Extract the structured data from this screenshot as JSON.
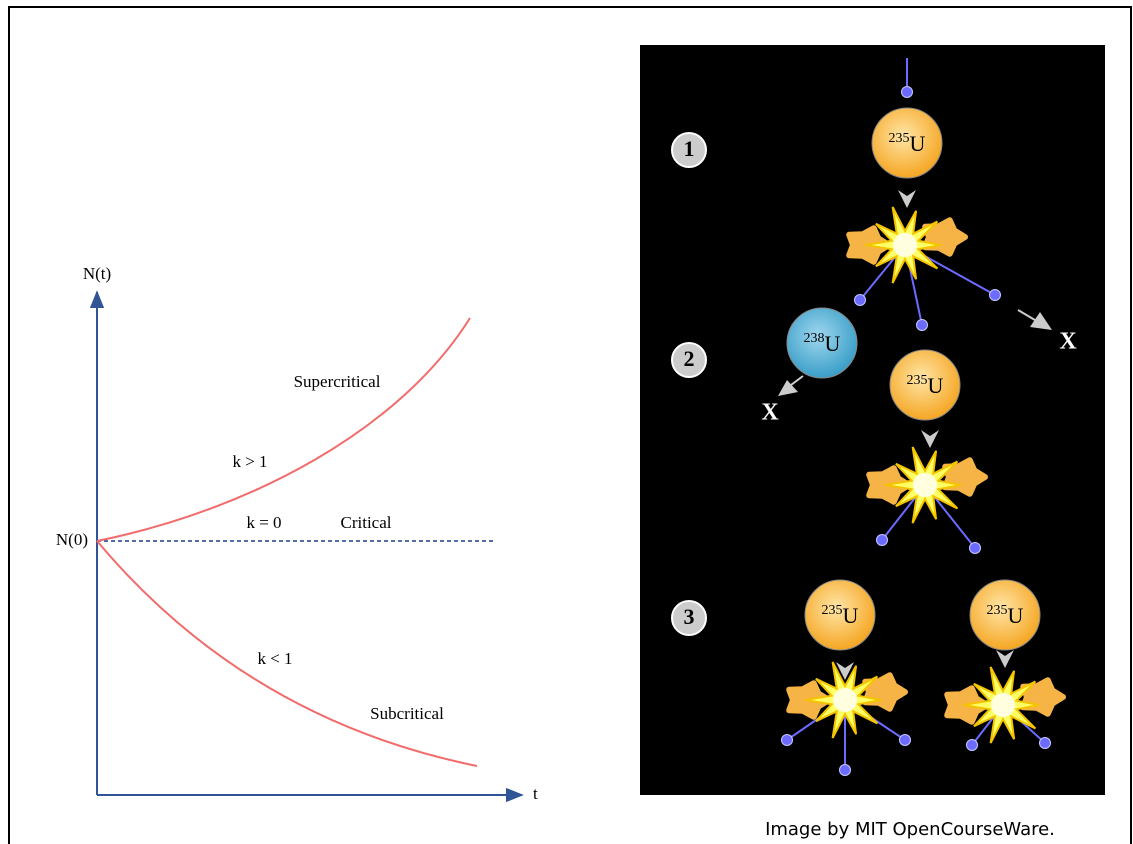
{
  "graph": {
    "y_axis_label": "N(t)",
    "x_axis_label": "t",
    "origin_label": "N(0)",
    "curves": [
      {
        "regime": "Supercritical",
        "condition": "k > 1"
      },
      {
        "regime": "Critical",
        "condition": "k = 0"
      },
      {
        "regime": "Subcritical",
        "condition": "k < 1"
      }
    ]
  },
  "diagram": {
    "steps": [
      "1",
      "2",
      "3"
    ],
    "nuclei": [
      {
        "mass": "235",
        "symbol": "U"
      },
      {
        "mass": "238",
        "symbol": "U"
      },
      {
        "mass": "235",
        "symbol": "U"
      },
      {
        "mass": "235",
        "symbol": "U"
      },
      {
        "mass": "235",
        "symbol": "U"
      }
    ],
    "absorbed_markers": [
      "X",
      "X"
    ]
  },
  "caption": "Image by MIT OpenCourseWare."
}
